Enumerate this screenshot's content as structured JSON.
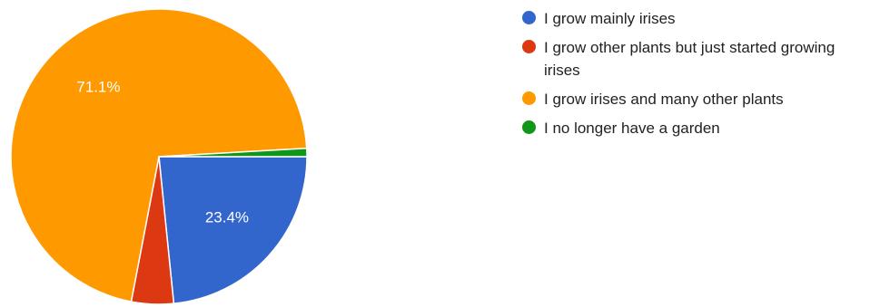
{
  "chart_data": {
    "type": "pie",
    "slices": [
      {
        "label": "I grow mainly irises",
        "value": 23.4,
        "data_label": "23.4%",
        "color": "#3366CC"
      },
      {
        "label": "I grow other plants but just started growing irises",
        "value": 4.6,
        "data_label": "",
        "color": "#DC3912"
      },
      {
        "label": "I grow irises and many other plants",
        "value": 71.1,
        "data_label": "71.1%",
        "color": "#FF9900"
      },
      {
        "label": "I no longer have a garden",
        "value": 0.9,
        "data_label": "",
        "color": "#109618"
      }
    ],
    "legend_position": "right",
    "start_angle_deg": 90
  }
}
